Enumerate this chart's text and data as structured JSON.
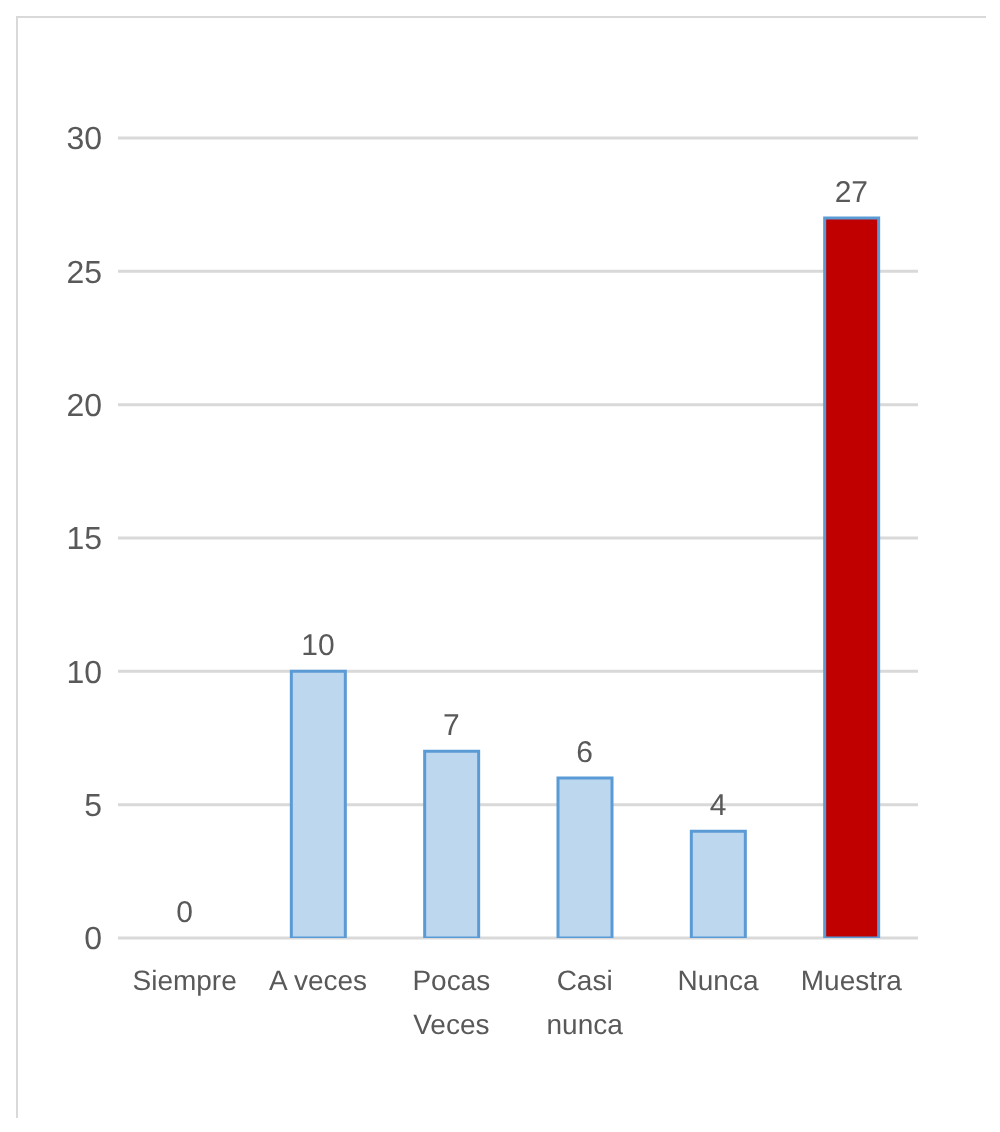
{
  "chart_data": {
    "type": "bar",
    "categories": [
      "Siempre",
      "A veces",
      "Pocas Veces",
      "Casi nunca",
      "Nunca",
      "Muestra"
    ],
    "values": [
      0,
      10,
      7,
      6,
      4,
      27
    ],
    "colors": [
      "#bdd7ee",
      "#bdd7ee",
      "#bdd7ee",
      "#bdd7ee",
      "#bdd7ee",
      "#c00000"
    ],
    "ylim": [
      0,
      30
    ],
    "yticks": [
      0,
      5,
      10,
      15,
      20,
      25,
      30
    ],
    "grid": "y",
    "data_labels": true
  }
}
